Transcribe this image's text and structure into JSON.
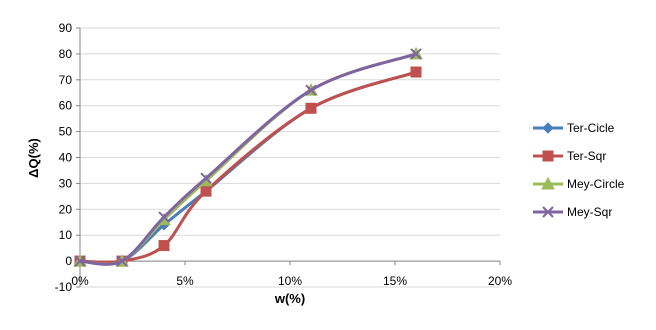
{
  "chart_data": {
    "type": "line",
    "xlabel": "w(%)",
    "ylabel": "ΔQ(%)",
    "xlim": [
      0,
      0.2
    ],
    "ylim": [
      -10,
      90
    ],
    "x_ticks": [
      {
        "value": 0.0,
        "label": "0%"
      },
      {
        "value": 0.05,
        "label": "5%"
      },
      {
        "value": 0.1,
        "label": "10%"
      },
      {
        "value": 0.15,
        "label": "15%"
      },
      {
        "value": 0.2,
        "label": "20%"
      }
    ],
    "y_ticks": [
      {
        "value": -10,
        "label": "-10"
      },
      {
        "value": 0,
        "label": "0"
      },
      {
        "value": 10,
        "label": "10"
      },
      {
        "value": 20,
        "label": "20"
      },
      {
        "value": 30,
        "label": "30"
      },
      {
        "value": 40,
        "label": "40"
      },
      {
        "value": 50,
        "label": "50"
      },
      {
        "value": 60,
        "label": "60"
      },
      {
        "value": 70,
        "label": "70"
      },
      {
        "value": 80,
        "label": "80"
      },
      {
        "value": 90,
        "label": "90"
      }
    ],
    "grid": "horizontal",
    "legend_position": "right",
    "series": [
      {
        "name": "Ter-Cicle",
        "color": "#4a7ebb",
        "marker": "diamond",
        "x": [
          0.0,
          0.02,
          0.04,
          0.06,
          0.11,
          0.16
        ],
        "y": [
          0.0,
          0.0,
          14.0,
          27.0,
          59.0,
          73.0
        ]
      },
      {
        "name": "Ter-Sqr",
        "color": "#c0504d",
        "marker": "square",
        "x": [
          0.0,
          0.02,
          0.04,
          0.06,
          0.11,
          0.16
        ],
        "y": [
          0.0,
          0.0,
          6.0,
          27.0,
          59.0,
          73.0
        ]
      },
      {
        "name": "Mey-Circle",
        "color": "#9bbb59",
        "marker": "triangle",
        "x": [
          0.0,
          0.02,
          0.04,
          0.06,
          0.11,
          0.16
        ],
        "y": [
          0.0,
          0.0,
          16.0,
          31.0,
          66.0,
          80.0
        ]
      },
      {
        "name": "Mey-Sqr",
        "color": "#8064a2",
        "marker": "x",
        "x": [
          0.0,
          0.02,
          0.04,
          0.06,
          0.11,
          0.16
        ],
        "y": [
          0.0,
          0.0,
          17.0,
          32.0,
          66.0,
          80.0
        ]
      }
    ]
  }
}
